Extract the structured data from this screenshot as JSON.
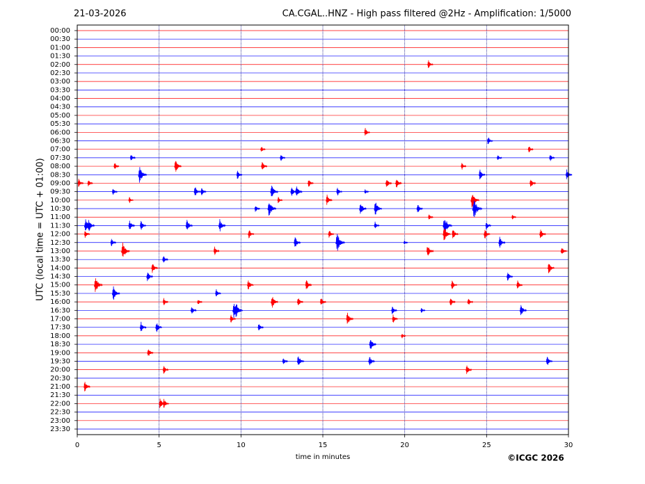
{
  "chart_data": {
    "type": "helicorder",
    "date": "21-03-2026",
    "title": "CA.CGAL..HNZ - High pass filtered @2Hz - Amplification: 1/5000",
    "ylabel": "UTC (local time = UTC + 01:00)",
    "xlabel": "time in minutes",
    "copyright": "©ICGC 2026",
    "categories": [
      "00:00",
      "00:30",
      "01:00",
      "01:30",
      "02:00",
      "02:30",
      "03:00",
      "03:30",
      "04:00",
      "04:30",
      "05:00",
      "05:30",
      "06:00",
      "06:30",
      "07:00",
      "07:30",
      "08:00",
      "08:30",
      "09:00",
      "09:30",
      "10:00",
      "10:30",
      "11:00",
      "11:30",
      "12:00",
      "12:30",
      "13:00",
      "13:30",
      "14:00",
      "14:30",
      "15:00",
      "15:30",
      "16:00",
      "16:30",
      "17:00",
      "17:30",
      "18:00",
      "18:30",
      "19:00",
      "19:30",
      "20:00",
      "20:30",
      "21:00",
      "21:30",
      "22:00",
      "22:30",
      "23:00",
      "23:30"
    ],
    "colors": [
      "#ff0000",
      "#0000ff"
    ],
    "xlim": [
      0,
      30
    ],
    "xticks": [
      0,
      5,
      10,
      15,
      20,
      25,
      30
    ],
    "grid": true,
    "events": [
      [
        4,
        21.46,
        0.4
      ],
      [
        12,
        17.6,
        0.4
      ],
      [
        13,
        25.1,
        0.4
      ],
      [
        14,
        11.26,
        0.3
      ],
      [
        14,
        27.6,
        0.35
      ],
      [
        15,
        3.3,
        0.35
      ],
      [
        15,
        12.45,
        0.35
      ],
      [
        15,
        25.7,
        0.3
      ],
      [
        15,
        28.9,
        0.35
      ],
      [
        16,
        2.3,
        0.35
      ],
      [
        16,
        6.0,
        0.6
      ],
      [
        16,
        11.3,
        0.45
      ],
      [
        16,
        23.5,
        0.35
      ],
      [
        17,
        3.8,
        0.8
      ],
      [
        17,
        9.8,
        0.4
      ],
      [
        17,
        24.6,
        0.5
      ],
      [
        17,
        29.9,
        0.5
      ],
      [
        18,
        0.1,
        0.4
      ],
      [
        18,
        0.7,
        0.35
      ],
      [
        18,
        14.15,
        0.4
      ],
      [
        18,
        18.9,
        0.45
      ],
      [
        18,
        19.5,
        0.5
      ],
      [
        18,
        27.7,
        0.45
      ],
      [
        19,
        2.2,
        0.35
      ],
      [
        19,
        7.2,
        0.5
      ],
      [
        19,
        7.6,
        0.4
      ],
      [
        19,
        11.86,
        0.7
      ],
      [
        19,
        13.1,
        0.45
      ],
      [
        19,
        13.4,
        0.55
      ],
      [
        19,
        15.9,
        0.4
      ],
      [
        19,
        17.6,
        0.25
      ],
      [
        20,
        3.2,
        0.3
      ],
      [
        20,
        12.3,
        0.3
      ],
      [
        20,
        15.26,
        0.5
      ],
      [
        20,
        24.1,
        0.8
      ],
      [
        21,
        10.9,
        0.35
      ],
      [
        21,
        11.7,
        0.8
      ],
      [
        21,
        17.3,
        0.6
      ],
      [
        21,
        18.2,
        0.7
      ],
      [
        21,
        20.8,
        0.45
      ],
      [
        21,
        24.2,
        1.0
      ],
      [
        22,
        21.5,
        0.3
      ],
      [
        22,
        26.6,
        0.25
      ],
      [
        23,
        0.5,
        0.7
      ],
      [
        23,
        0.7,
        0.6
      ],
      [
        23,
        3.2,
        0.5
      ],
      [
        23,
        3.9,
        0.45
      ],
      [
        23,
        6.7,
        0.55
      ],
      [
        23,
        8.7,
        0.6
      ],
      [
        23,
        18.2,
        0.35
      ],
      [
        23,
        22.4,
        0.9
      ],
      [
        23,
        25.0,
        0.4
      ],
      [
        24,
        0.5,
        0.4
      ],
      [
        24,
        10.5,
        0.45
      ],
      [
        24,
        15.4,
        0.4
      ],
      [
        24,
        22.4,
        0.7
      ],
      [
        24,
        22.95,
        0.5
      ],
      [
        24,
        24.9,
        0.5
      ],
      [
        24,
        28.3,
        0.5
      ],
      [
        25,
        2.1,
        0.4
      ],
      [
        25,
        13.3,
        0.55
      ],
      [
        25,
        15.85,
        0.9
      ],
      [
        25,
        20.0,
        0.2
      ],
      [
        25,
        25.8,
        0.55
      ],
      [
        26,
        2.76,
        0.8
      ],
      [
        26,
        8.4,
        0.4
      ],
      [
        26,
        21.4,
        0.6
      ],
      [
        26,
        29.6,
        0.45
      ],
      [
        27,
        5.27,
        0.4
      ],
      [
        28,
        4.6,
        0.5
      ],
      [
        28,
        28.8,
        0.55
      ],
      [
        29,
        4.3,
        0.5
      ],
      [
        29,
        26.3,
        0.45
      ],
      [
        30,
        1.1,
        0.8
      ],
      [
        30,
        10.45,
        0.5
      ],
      [
        30,
        14.0,
        0.5
      ],
      [
        30,
        22.9,
        0.45
      ],
      [
        30,
        26.9,
        0.45
      ],
      [
        31,
        2.2,
        0.7
      ],
      [
        31,
        8.5,
        0.4
      ],
      [
        32,
        5.3,
        0.35
      ],
      [
        32,
        7.4,
        0.3
      ],
      [
        32,
        11.9,
        0.6
      ],
      [
        32,
        13.5,
        0.45
      ],
      [
        32,
        14.9,
        0.45
      ],
      [
        32,
        22.8,
        0.45
      ],
      [
        32,
        23.9,
        0.4
      ],
      [
        33,
        7.0,
        0.4
      ],
      [
        33,
        9.56,
        0.8
      ],
      [
        33,
        9.7,
        0.7
      ],
      [
        33,
        19.25,
        0.4
      ],
      [
        33,
        21.04,
        0.25
      ],
      [
        33,
        27.1,
        0.55
      ],
      [
        34,
        9.4,
        0.4
      ],
      [
        34,
        16.5,
        0.6
      ],
      [
        34,
        19.3,
        0.4
      ],
      [
        35,
        3.9,
        0.5
      ],
      [
        35,
        4.85,
        0.5
      ],
      [
        35,
        11.1,
        0.4
      ],
      [
        36,
        19.85,
        0.25
      ],
      [
        37,
        17.9,
        0.6
      ],
      [
        38,
        4.35,
        0.45
      ],
      [
        39,
        12.6,
        0.35
      ],
      [
        39,
        13.5,
        0.6
      ],
      [
        39,
        17.85,
        0.5
      ],
      [
        39,
        28.7,
        0.5
      ],
      [
        40,
        5.3,
        0.4
      ],
      [
        40,
        23.8,
        0.45
      ],
      [
        42,
        0.47,
        0.5
      ],
      [
        44,
        5.06,
        0.5
      ],
      [
        44,
        5.3,
        0.45
      ]
    ]
  }
}
